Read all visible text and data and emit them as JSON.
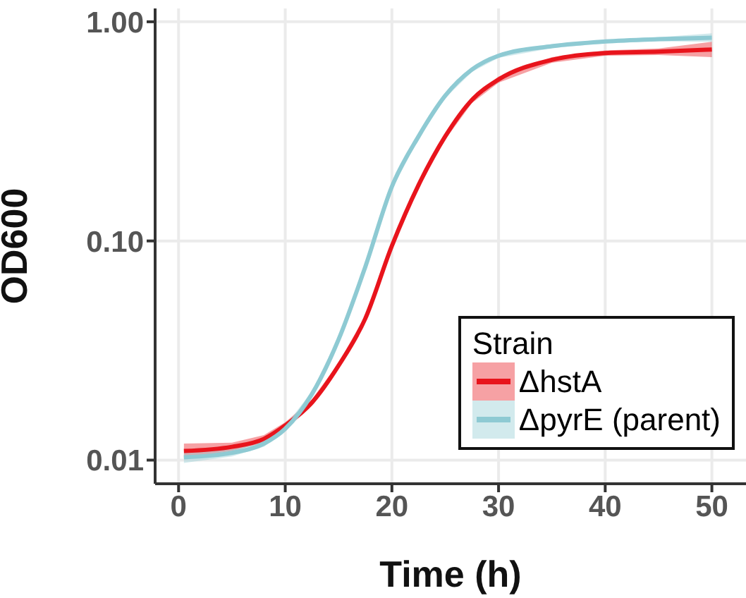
{
  "chart_data": {
    "type": "line",
    "xlabel": "Time (h)",
    "ylabel": "OD600",
    "legend_title": "Strain",
    "x": [
      0.5,
      5,
      8,
      10,
      12.5,
      15,
      17.5,
      20,
      22.5,
      25,
      27.5,
      30,
      35,
      40,
      45,
      50
    ],
    "series": [
      {
        "name": "ΔhstA",
        "color": "#e8141c",
        "values": [
          0.011,
          0.0115,
          0.0125,
          0.0144,
          0.0183,
          0.027,
          0.0442,
          0.095,
          0.18,
          0.3,
          0.44,
          0.545,
          0.67,
          0.72,
          0.73,
          0.747
        ],
        "lower": [
          0.0102,
          0.011,
          0.012,
          0.0139,
          0.0177,
          0.0262,
          0.043,
          0.092,
          0.174,
          0.29,
          0.425,
          0.527,
          0.65,
          0.7,
          0.705,
          0.69
        ],
        "upper": [
          0.0119,
          0.012,
          0.013,
          0.0149,
          0.0189,
          0.0278,
          0.0455,
          0.098,
          0.186,
          0.31,
          0.455,
          0.563,
          0.69,
          0.74,
          0.755,
          0.81
        ]
      },
      {
        "name": "ΔpyrE (parent)",
        "color": "#8ecad3",
        "values": [
          0.0103,
          0.0108,
          0.0119,
          0.0139,
          0.02,
          0.0355,
          0.076,
          0.177,
          0.3,
          0.46,
          0.605,
          0.7,
          0.774,
          0.813,
          0.833,
          0.846
        ],
        "lower": [
          0.0097,
          0.0104,
          0.0115,
          0.0135,
          0.0194,
          0.0345,
          0.074,
          0.172,
          0.292,
          0.448,
          0.59,
          0.685,
          0.758,
          0.797,
          0.815,
          0.81
        ],
        "upper": [
          0.0109,
          0.0112,
          0.0123,
          0.0143,
          0.0206,
          0.0365,
          0.078,
          0.182,
          0.308,
          0.472,
          0.62,
          0.715,
          0.79,
          0.829,
          0.851,
          0.885
        ]
      }
    ],
    "xlim": [
      -2.2,
      53.2
    ],
    "xticks": [
      0,
      10,
      20,
      30,
      40,
      50
    ],
    "ylim": [
      0.0078,
      1.15
    ],
    "yticks": [
      {
        "value": 0.01,
        "label": "0.01"
      },
      {
        "value": 0.1,
        "label": "0.10"
      },
      {
        "value": 1,
        "label": "1.00"
      }
    ],
    "log": "y",
    "grid": true,
    "legend": "bottom right",
    "marker": "none",
    "line_style": "solid"
  }
}
